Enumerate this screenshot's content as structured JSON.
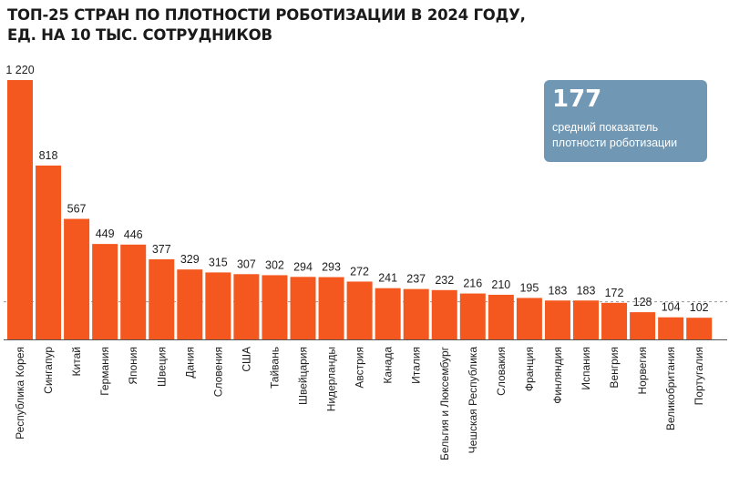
{
  "header": {
    "title_line1": "ТОП-25 СТРАН ПО ПЛОТНОСТИ РОБОТИЗАЦИИ В 2024 ГОДУ,",
    "title_line2": "ЕД. НА 10 ТЫС. СОТРУДНИКОВ"
  },
  "average_box": {
    "value": "177",
    "text": "средний показатель плотности роботизации"
  },
  "colors": {
    "bar": "#f4581f",
    "average_box": "#7097b3"
  },
  "chart_data": {
    "type": "bar",
    "title": "ТОП-25 СТРАН ПО ПЛОТНОСТИ РОБОТИЗАЦИИ В 2024 ГОДУ, ЕД. НА 10 ТЫС. СОТРУДНИКОВ",
    "categories": [
      "Республика Корея",
      "Сингапур",
      "Китай",
      "Германия",
      "Япония",
      "Швеция",
      "Дания",
      "Словения",
      "США",
      "Тайвань",
      "Швейцария",
      "Нидерланды",
      "Австрия",
      "Канада",
      "Италия",
      "Бельгия и Люксембург",
      "Чешская Республика",
      "Словакия",
      "Франция",
      "Финляндия",
      "Испания",
      "Венгрия",
      "Норвегия",
      "Великобритания",
      "Португалия"
    ],
    "values": [
      1220,
      818,
      567,
      449,
      446,
      377,
      329,
      315,
      307,
      302,
      294,
      293,
      272,
      241,
      237,
      232,
      216,
      210,
      195,
      183,
      183,
      172,
      128,
      104,
      102
    ],
    "value_labels": [
      "1 220",
      "818",
      "567",
      "449",
      "446",
      "377",
      "329",
      "315",
      "307",
      "302",
      "294",
      "293",
      "272",
      "241",
      "237",
      "232",
      "216",
      "210",
      "195",
      "183",
      "183",
      "172",
      "128",
      "104",
      "102"
    ],
    "average": 177,
    "ylim": [
      0,
      1220
    ],
    "grid": false,
    "legend": "none"
  }
}
